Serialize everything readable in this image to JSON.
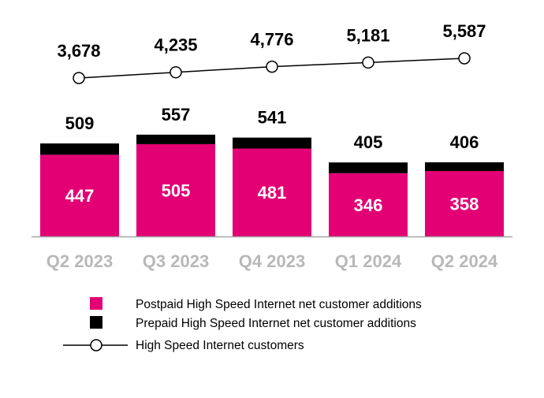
{
  "chart_data": {
    "type": "bar",
    "stacked": true,
    "categories": [
      "Q2 2023",
      "Q3 2023",
      "Q4 2023",
      "Q1 2024",
      "Q2 2024"
    ],
    "series": [
      {
        "name": "Postpaid High Speed Internet net customer additions",
        "kind": "bar",
        "color": "#E20074",
        "values": [
          447,
          505,
          481,
          346,
          358
        ]
      },
      {
        "name": "Prepaid High Speed Internet net customer additions",
        "kind": "bar",
        "color": "#000000",
        "values": [
          62,
          52,
          60,
          59,
          48
        ]
      },
      {
        "name": "High Speed Internet customers",
        "kind": "line",
        "color": "#000000",
        "values": [
          3678,
          4235,
          4776,
          5181,
          5587
        ],
        "labels": [
          "3,678",
          "4,235",
          "4,776",
          "5,181",
          "5,587"
        ]
      }
    ],
    "totals": [
      509,
      557,
      541,
      405,
      406
    ],
    "legend_position": "bottom",
    "grid": false
  }
}
